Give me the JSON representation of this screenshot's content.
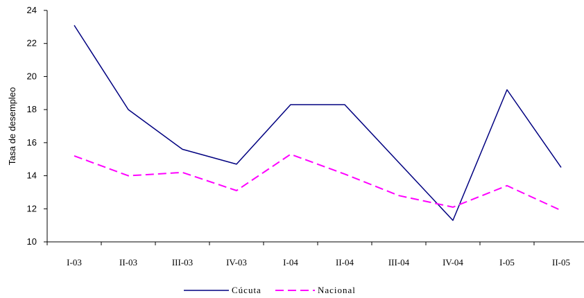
{
  "chart_data": {
    "type": "line",
    "title": "",
    "xlabel": "",
    "ylabel": "Tasa de desempleo",
    "ylim": [
      10,
      24
    ],
    "yticks": [
      10,
      12,
      14,
      16,
      18,
      20,
      22,
      24
    ],
    "categories": [
      "I-03",
      "II-03",
      "III-03",
      "IV-03",
      "I-04",
      "II-04",
      "III-04",
      "IV-04",
      "I-05",
      "II-05"
    ],
    "grid": false,
    "legend_position": "bottom",
    "series": [
      {
        "name": "Cúcuta",
        "color": "#000080",
        "style": "solid",
        "values": [
          23.1,
          18.0,
          15.6,
          14.7,
          18.3,
          18.3,
          14.8,
          11.3,
          19.2,
          14.5
        ]
      },
      {
        "name": "Nacional",
        "color": "#ff00ff",
        "style": "dashed",
        "values": [
          15.2,
          14.0,
          14.2,
          13.1,
          15.3,
          14.1,
          12.8,
          12.1,
          13.4,
          11.9
        ]
      }
    ]
  }
}
